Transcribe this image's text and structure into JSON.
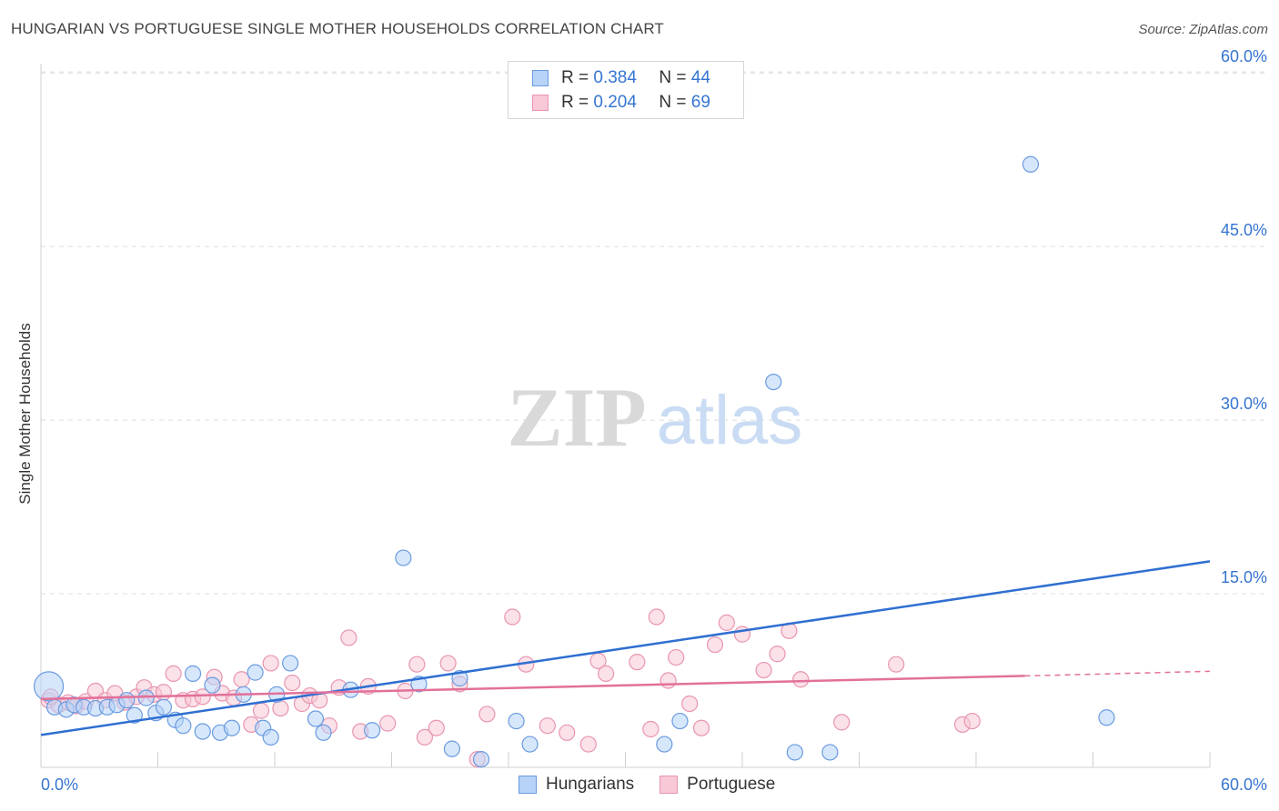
{
  "header": {
    "title": "HUNGARIAN VS PORTUGUESE SINGLE MOTHER HOUSEHOLDS CORRELATION CHART",
    "source": "Source: ZipAtlas.com"
  },
  "watermark": {
    "zip": "ZIP",
    "atlas": "atlas"
  },
  "legend": {
    "r_label": "R =",
    "n_label": "N =",
    "entries": [
      {
        "name": "Hungarians",
        "r": "0.384",
        "n": "44",
        "fill": "#b7d3f7",
        "stroke": "#6a9be0"
      },
      {
        "name": "Portuguese",
        "r": "0.204",
        "n": "69",
        "fill": "#f8c8d6",
        "stroke": "#e895b0"
      }
    ]
  },
  "chart_data": {
    "type": "scatter",
    "title": "HUNGARIAN VS PORTUGUESE SINGLE MOTHER HOUSEHOLDS CORRELATION CHART",
    "xlabel": "",
    "ylabel": "Single Mother Households",
    "xlim": [
      0,
      60
    ],
    "ylim": [
      0,
      63
    ],
    "x_tick_labels": [
      "0.0%",
      "60.0%"
    ],
    "y_ticks": [
      15,
      30,
      45,
      60
    ],
    "y_tick_labels": [
      "15.0%",
      "30.0%",
      "45.0%",
      "60.0%"
    ],
    "grid": "horizontal dashed",
    "legend_position": "top-center and bottom-center",
    "colors": {
      "hungarians": "#6a9be0",
      "portuguese": "#e895b0",
      "hungarians_line": "#2f6fd1",
      "portuguese_line": "#e2709a",
      "axis_text": "#3575d0"
    },
    "series": [
      {
        "name": "Hungarians",
        "r": 0.384,
        "n": 44,
        "trend": {
          "x": [
            0,
            60
          ],
          "y": [
            2.8,
            17.8
          ]
        },
        "points": [
          [
            0.4,
            7.0
          ],
          [
            0.7,
            5.2
          ],
          [
            1.3,
            5.0
          ],
          [
            1.7,
            5.4
          ],
          [
            2.2,
            5.2
          ],
          [
            2.8,
            5.1
          ],
          [
            3.4,
            5.2
          ],
          [
            3.9,
            5.4
          ],
          [
            4.4,
            5.8
          ],
          [
            4.8,
            4.5
          ],
          [
            5.4,
            6.0
          ],
          [
            5.9,
            4.7
          ],
          [
            6.3,
            5.2
          ],
          [
            6.9,
            4.1
          ],
          [
            7.3,
            3.6
          ],
          [
            7.8,
            8.1
          ],
          [
            8.3,
            3.1
          ],
          [
            8.8,
            7.1
          ],
          [
            9.2,
            3.0
          ],
          [
            9.8,
            3.4
          ],
          [
            10.4,
            6.3
          ],
          [
            11.0,
            8.2
          ],
          [
            11.4,
            3.4
          ],
          [
            11.8,
            2.6
          ],
          [
            12.1,
            6.3
          ],
          [
            12.8,
            9.0
          ],
          [
            14.1,
            4.2
          ],
          [
            14.5,
            3.0
          ],
          [
            15.9,
            6.7
          ],
          [
            17.0,
            3.2
          ],
          [
            18.6,
            18.1
          ],
          [
            19.4,
            7.2
          ],
          [
            21.1,
            1.6
          ],
          [
            21.5,
            7.7
          ],
          [
            22.6,
            0.7
          ],
          [
            24.4,
            4.0
          ],
          [
            25.1,
            2.0
          ],
          [
            32.0,
            2.0
          ],
          [
            32.8,
            4.0
          ],
          [
            37.6,
            33.3
          ],
          [
            38.7,
            1.3
          ],
          [
            40.5,
            1.3
          ],
          [
            50.8,
            52.1
          ],
          [
            54.7,
            4.3
          ]
        ]
      },
      {
        "name": "Portuguese",
        "r": 0.204,
        "n": 69,
        "trend": {
          "x": [
            0,
            50.5
          ],
          "y": [
            5.9,
            7.9
          ]
        },
        "trend_dashed": {
          "x": [
            50.5,
            60
          ],
          "y": [
            7.9,
            8.3
          ]
        },
        "points": [
          [
            0.4,
            5.8
          ],
          [
            0.9,
            5.4
          ],
          [
            1.4,
            5.6
          ],
          [
            1.8,
            5.3
          ],
          [
            2.3,
            5.7
          ],
          [
            2.8,
            6.6
          ],
          [
            3.3,
            5.8
          ],
          [
            3.8,
            6.4
          ],
          [
            4.3,
            5.6
          ],
          [
            4.9,
            6.1
          ],
          [
            5.3,
            6.9
          ],
          [
            5.8,
            6.3
          ],
          [
            6.3,
            6.5
          ],
          [
            6.8,
            8.1
          ],
          [
            7.3,
            5.8
          ],
          [
            7.8,
            5.9
          ],
          [
            8.3,
            6.1
          ],
          [
            8.9,
            7.8
          ],
          [
            9.3,
            6.4
          ],
          [
            9.9,
            6.0
          ],
          [
            10.3,
            7.6
          ],
          [
            10.8,
            3.7
          ],
          [
            11.3,
            4.9
          ],
          [
            11.8,
            9.0
          ],
          [
            12.3,
            5.1
          ],
          [
            12.9,
            7.3
          ],
          [
            13.4,
            5.5
          ],
          [
            13.8,
            6.2
          ],
          [
            14.3,
            5.8
          ],
          [
            14.8,
            3.6
          ],
          [
            15.3,
            6.9
          ],
          [
            15.8,
            11.2
          ],
          [
            16.4,
            3.1
          ],
          [
            16.8,
            7.0
          ],
          [
            17.8,
            3.8
          ],
          [
            18.7,
            6.6
          ],
          [
            19.3,
            8.9
          ],
          [
            19.7,
            2.6
          ],
          [
            20.3,
            3.4
          ],
          [
            20.9,
            9.0
          ],
          [
            21.5,
            7.2
          ],
          [
            22.4,
            0.7
          ],
          [
            22.9,
            4.6
          ],
          [
            24.2,
            13.0
          ],
          [
            24.9,
            8.9
          ],
          [
            26.0,
            3.6
          ],
          [
            27.0,
            3.0
          ],
          [
            28.1,
            2.0
          ],
          [
            28.6,
            9.2
          ],
          [
            29.0,
            8.1
          ],
          [
            30.6,
            9.1
          ],
          [
            31.3,
            3.3
          ],
          [
            31.6,
            13.0
          ],
          [
            32.2,
            7.5
          ],
          [
            32.6,
            9.5
          ],
          [
            33.3,
            5.5
          ],
          [
            33.9,
            3.4
          ],
          [
            34.6,
            10.6
          ],
          [
            35.2,
            12.5
          ],
          [
            36.0,
            11.5
          ],
          [
            37.1,
            8.4
          ],
          [
            37.8,
            9.8
          ],
          [
            38.4,
            11.8
          ],
          [
            39.0,
            7.6
          ],
          [
            41.1,
            3.9
          ],
          [
            43.9,
            8.9
          ],
          [
            47.3,
            3.7
          ],
          [
            47.8,
            4.0
          ],
          [
            0.5,
            6.1
          ]
        ]
      }
    ]
  }
}
